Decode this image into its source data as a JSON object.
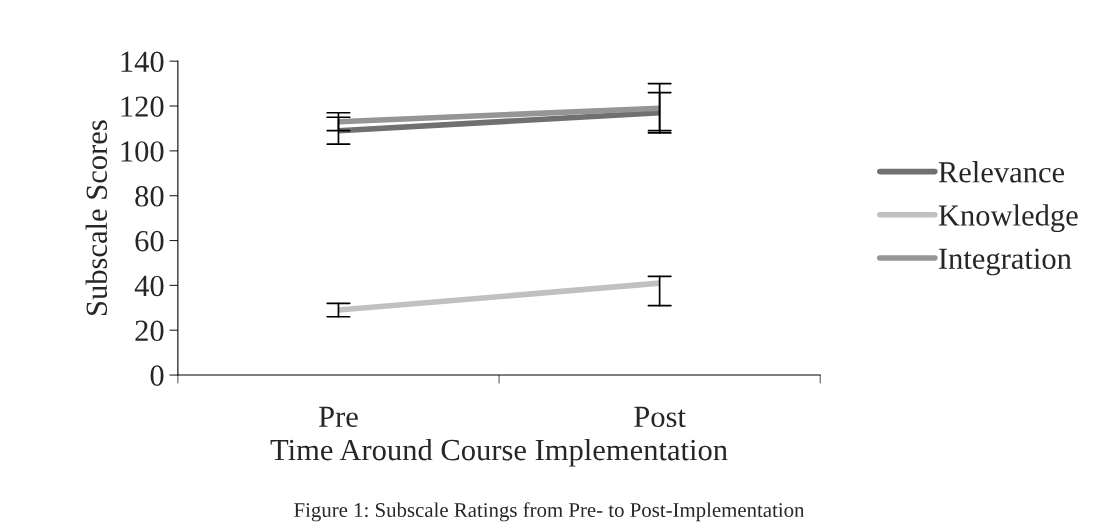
{
  "chart_data": {
    "type": "line",
    "xlabel": "Time Around Course Implementation",
    "ylabel": "Subscale Scores",
    "categories": [
      "Pre",
      "Post"
    ],
    "series": [
      {
        "name": "Relevance",
        "color": "#707070",
        "values": [
          109,
          117
        ],
        "errors": [
          [
            103,
            115
          ],
          [
            108,
            126
          ]
        ]
      },
      {
        "name": "Knowledge",
        "color": "#c0c0c0",
        "values": [
          29,
          41
        ],
        "errors": [
          [
            26,
            32
          ],
          [
            31,
            44
          ]
        ]
      },
      {
        "name": "Integration",
        "color": "#959595",
        "values": [
          113,
          119
        ],
        "errors": [
          [
            109,
            117
          ],
          [
            109,
            130
          ]
        ]
      }
    ],
    "ylim": [
      0,
      140
    ],
    "yticks": [
      0,
      20,
      40,
      60,
      80,
      100,
      120,
      140
    ],
    "legend": "right",
    "grid": false,
    "marker": "none",
    "line_style": "solid",
    "annotations": [
      "Figure 1: Subscale Ratings from Pre- to Post-Implementation"
    ]
  }
}
